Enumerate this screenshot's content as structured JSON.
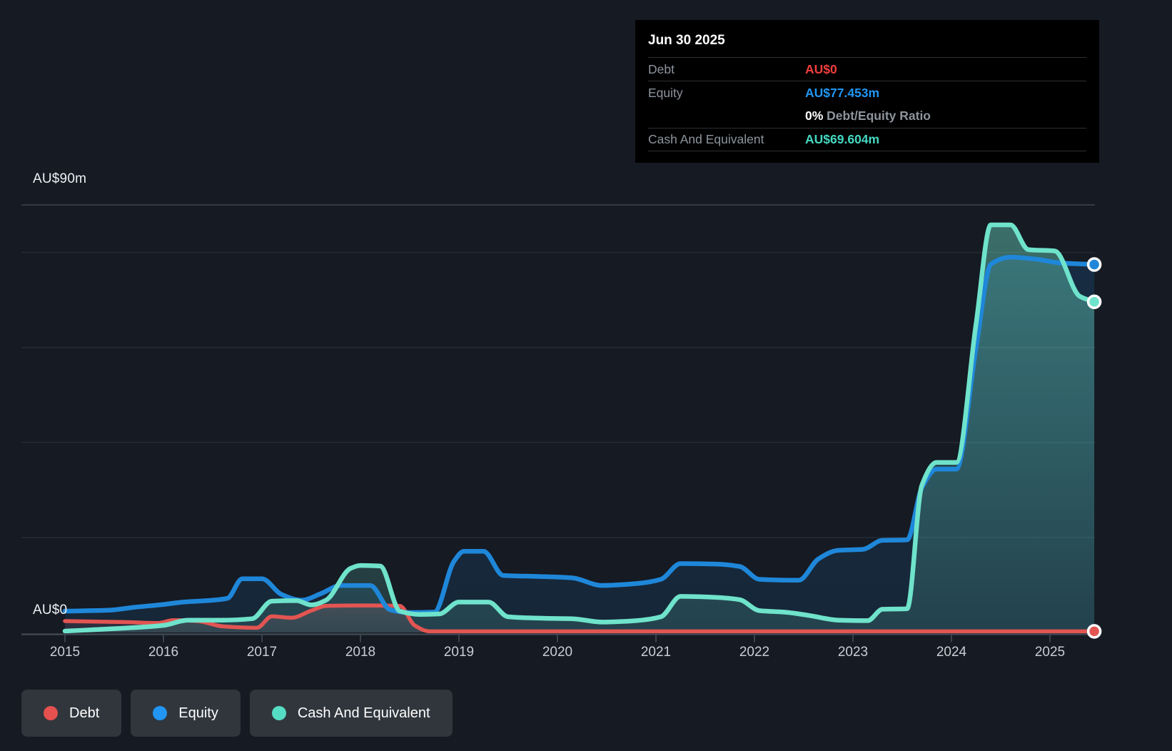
{
  "page": {
    "background_color": "#151a23"
  },
  "tooltip": {
    "date": "Jun 30 2025",
    "rows": [
      {
        "label": "Debt",
        "value": "AU$0",
        "value_color": "#f23d3d"
      },
      {
        "label": "Equity",
        "value": "AU$77.453m",
        "value_color": "#2196f3"
      },
      {
        "label": "",
        "value_bold": "0%",
        "value_rest": " Debt/Equity Ratio"
      },
      {
        "label": "Cash And Equivalent",
        "value": "AU$69.604m",
        "value_color": "#45d9c2"
      }
    ]
  },
  "y_axis": {
    "top_label": "AU$90m",
    "bottom_label": "AU$0",
    "max": 90,
    "min": 0,
    "gridline_values": [
      80,
      60,
      40,
      20
    ]
  },
  "x_axis": {
    "years": [
      2015,
      2016,
      2017,
      2018,
      2019,
      2020,
      2021,
      2022,
      2023,
      2024,
      2025
    ]
  },
  "legend": [
    {
      "label": "Debt",
      "color": "#e5514f"
    },
    {
      "label": "Equity",
      "color": "#2196f3"
    },
    {
      "label": "Cash And Equivalent",
      "color": "#55ddc3"
    }
  ],
  "chart_data": {
    "type": "area",
    "x_start": 2015,
    "x_end": 2025.45,
    "x_unit": "year",
    "y_unit": "AU$ millions",
    "ylim": [
      0,
      90
    ],
    "grid": "horizontal",
    "legend_position": "bottom-left",
    "series": [
      {
        "name": "Debt",
        "line_color": "#e25552",
        "fill_color_rgb": "226,85,82",
        "fill_alpha_top": 0.2,
        "fill_alpha_bottom": 0.1,
        "end_value_label": "AU$0",
        "points": [
          [
            2015.0,
            2.4
          ],
          [
            2015.6,
            2.2
          ],
          [
            2015.95,
            2.0
          ],
          [
            2016.1,
            2.6
          ],
          [
            2016.35,
            2.4
          ],
          [
            2016.6,
            1.3
          ],
          [
            2016.95,
            1.0
          ],
          [
            2017.1,
            3.4
          ],
          [
            2017.3,
            3.1
          ],
          [
            2017.5,
            4.6
          ],
          [
            2017.65,
            5.6
          ],
          [
            2018.0,
            5.7
          ],
          [
            2018.4,
            5.6
          ],
          [
            2018.55,
            1.5
          ],
          [
            2018.7,
            0.25
          ],
          [
            2019.5,
            0.25
          ],
          [
            2020.5,
            0.25
          ],
          [
            2021.5,
            0.25
          ],
          [
            2022.5,
            0.25
          ],
          [
            2023.5,
            0.25
          ],
          [
            2024.5,
            0.25
          ],
          [
            2025.45,
            0.25
          ]
        ]
      },
      {
        "name": "Equity",
        "line_color": "#1f87d9",
        "fill_color_rgb": "33,150,243",
        "fill_alpha_top": 0.15,
        "fill_alpha_bottom": 0.1,
        "end_value_label": "AU$77.453m",
        "points": [
          [
            2015.0,
            4.5
          ],
          [
            2015.45,
            4.7
          ],
          [
            2015.7,
            5.3
          ],
          [
            2016.0,
            5.9
          ],
          [
            2016.2,
            6.4
          ],
          [
            2016.5,
            6.8
          ],
          [
            2016.65,
            7.2
          ],
          [
            2016.8,
            11.3
          ],
          [
            2017.0,
            11.3
          ],
          [
            2017.2,
            8.0
          ],
          [
            2017.4,
            6.8
          ],
          [
            2017.6,
            8.2
          ],
          [
            2017.8,
            9.9
          ],
          [
            2018.1,
            9.9
          ],
          [
            2018.3,
            4.8
          ],
          [
            2018.5,
            4.2
          ],
          [
            2018.75,
            4.3
          ],
          [
            2018.95,
            15.0
          ],
          [
            2019.05,
            17.1
          ],
          [
            2019.25,
            17.1
          ],
          [
            2019.45,
            12.0
          ],
          [
            2019.8,
            11.8
          ],
          [
            2020.15,
            11.5
          ],
          [
            2020.45,
            9.9
          ],
          [
            2020.8,
            10.3
          ],
          [
            2021.05,
            11.2
          ],
          [
            2021.25,
            14.5
          ],
          [
            2021.6,
            14.4
          ],
          [
            2021.85,
            13.9
          ],
          [
            2022.05,
            11.2
          ],
          [
            2022.45,
            11.0
          ],
          [
            2022.65,
            15.5
          ],
          [
            2022.85,
            17.3
          ],
          [
            2023.1,
            17.5
          ],
          [
            2023.3,
            19.4
          ],
          [
            2023.55,
            19.5
          ],
          [
            2023.7,
            30.5
          ],
          [
            2023.85,
            34.4
          ],
          [
            2024.05,
            34.4
          ],
          [
            2024.25,
            60
          ],
          [
            2024.4,
            77.5
          ],
          [
            2024.6,
            79.0
          ],
          [
            2024.85,
            78.6
          ],
          [
            2025.1,
            77.8
          ],
          [
            2025.45,
            77.453
          ]
        ]
      },
      {
        "name": "Cash And Equivalent",
        "line_color": "#6fe3cb",
        "fill_color_rgb": "111,227,203",
        "fill_alpha_top": 0.42,
        "fill_alpha_bottom": 0.14,
        "end_value_label": "AU$69.604m",
        "points": [
          [
            2015.0,
            0.3
          ],
          [
            2015.5,
            0.8
          ],
          [
            2016.0,
            1.5
          ],
          [
            2016.25,
            2.6
          ],
          [
            2016.6,
            2.6
          ],
          [
            2016.9,
            2.9
          ],
          [
            2017.1,
            6.6
          ],
          [
            2017.35,
            6.7
          ],
          [
            2017.5,
            5.8
          ],
          [
            2017.65,
            6.8
          ],
          [
            2017.9,
            13.5
          ],
          [
            2018.0,
            14.1
          ],
          [
            2018.2,
            14.0
          ],
          [
            2018.4,
            4.5
          ],
          [
            2018.6,
            3.8
          ],
          [
            2018.8,
            3.9
          ],
          [
            2019.0,
            6.4
          ],
          [
            2019.3,
            6.4
          ],
          [
            2019.5,
            3.3
          ],
          [
            2019.85,
            3.0
          ],
          [
            2020.15,
            2.9
          ],
          [
            2020.45,
            2.2
          ],
          [
            2020.8,
            2.5
          ],
          [
            2021.05,
            3.3
          ],
          [
            2021.25,
            7.6
          ],
          [
            2021.6,
            7.4
          ],
          [
            2021.85,
            6.9
          ],
          [
            2022.05,
            4.6
          ],
          [
            2022.3,
            4.3
          ],
          [
            2022.55,
            3.6
          ],
          [
            2022.85,
            2.6
          ],
          [
            2023.15,
            2.5
          ],
          [
            2023.3,
            4.9
          ],
          [
            2023.55,
            5.0
          ],
          [
            2023.7,
            31.0
          ],
          [
            2023.85,
            35.8
          ],
          [
            2024.05,
            35.8
          ],
          [
            2024.25,
            65
          ],
          [
            2024.4,
            85.8
          ],
          [
            2024.6,
            85.8
          ],
          [
            2024.78,
            80.6
          ],
          [
            2025.05,
            80.3
          ],
          [
            2025.3,
            70.8
          ],
          [
            2025.45,
            69.604
          ]
        ]
      }
    ]
  }
}
